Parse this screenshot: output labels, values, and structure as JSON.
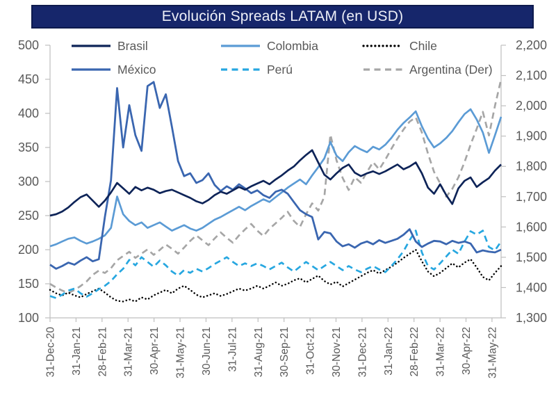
{
  "title": "Evolución Spreads LATAM (en USD)",
  "colors": {
    "background": "#FFFFFF",
    "title_bar_bg": "#16266B",
    "title_bar_border": "#0D1A4D",
    "title_text": "#EDEFF7",
    "axis_text": "#595959",
    "legend_text": "#595959",
    "axis_line": "#BFBFBF"
  },
  "chart_data": {
    "type": "line",
    "title": "Evolución Spreads LATAM (en USD)",
    "legend_position": "top",
    "grid": false,
    "x_tick_labels": [
      "31-Dec-20",
      "31-Jan-21",
      "28-Feb-21",
      "31-Mar-21",
      "30-Apr-21",
      "31-May-21",
      "30-Jun-21",
      "31-Jul-21",
      "31-Aug-21",
      "30-Sep-21",
      "31-Oct-21",
      "30-Nov-21",
      "31-Dec-21",
      "31-Jan-22",
      "28-Feb-22",
      "31-Mar-22",
      "30-Apr-22",
      "31-May-22"
    ],
    "x_span_months": 17.35,
    "y_left": {
      "min": 100,
      "max": 500,
      "step": 50,
      "ticks": [
        500,
        450,
        400,
        350,
        300,
        250,
        200,
        150,
        100
      ]
    },
    "y_right": {
      "min": 1300,
      "max": 2200,
      "step": 100,
      "ticks": [
        "2,200",
        "2,100",
        "2,000",
        "1,900",
        "1,800",
        "1,700",
        "1,600",
        "1,500",
        "1,400",
        "1,300"
      ]
    },
    "series": [
      {
        "name": "Brasil",
        "axis": "left",
        "color": "#0E2458",
        "style": "solid",
        "width": 2.7,
        "values": [
          250,
          252,
          256,
          262,
          270,
          277,
          281,
          272,
          263,
          272,
          284,
          298,
          290,
          282,
          292,
          287,
          291,
          288,
          283,
          286,
          288,
          284,
          280,
          276,
          271,
          268,
          273,
          280,
          285,
          282,
          287,
          292,
          288,
          293,
          297,
          301,
          296,
          303,
          309,
          316,
          322,
          331,
          339,
          346,
          328,
          310,
          303,
          312,
          320,
          325,
          313,
          308,
          312,
          315,
          311,
          315,
          320,
          325,
          318,
          322,
          328,
          312,
          291,
          282,
          296,
          280,
          267,
          290,
          301,
          306,
          292,
          299,
          305,
          316,
          325
        ]
      },
      {
        "name": "Colombia",
        "axis": "left",
        "color": "#5B9BD5",
        "style": "solid",
        "width": 2.7,
        "values": [
          205,
          208,
          212,
          216,
          218,
          213,
          209,
          212,
          216,
          221,
          232,
          278,
          252,
          242,
          236,
          240,
          232,
          236,
          240,
          234,
          228,
          232,
          236,
          231,
          228,
          232,
          238,
          244,
          248,
          253,
          258,
          263,
          258,
          264,
          269,
          274,
          270,
          277,
          284,
          291,
          297,
          303,
          296,
          309,
          321,
          334,
          358,
          338,
          330,
          343,
          352,
          347,
          343,
          351,
          347,
          354,
          364,
          376,
          386,
          394,
          403,
          381,
          363,
          350,
          356,
          364,
          374,
          387,
          399,
          406,
          391,
          372,
          342,
          368,
          395
        ]
      },
      {
        "name": "Chile",
        "axis": "left",
        "color": "#000000",
        "style": "dotted",
        "width": 2.5,
        "values": [
          141,
          136,
          133,
          137,
          133,
          130,
          135,
          139,
          143,
          137,
          130,
          125,
          124,
          127,
          124,
          130,
          127,
          133,
          137,
          141,
          136,
          143,
          147,
          141,
          134,
          130,
          133,
          136,
          132,
          135,
          139,
          143,
          140,
          143,
          147,
          143,
          147,
          152,
          147,
          150,
          155,
          158,
          152,
          157,
          162,
          154,
          149,
          153,
          146,
          151,
          156,
          161,
          166,
          170,
          165,
          170,
          175,
          181,
          188,
          194,
          200,
          183,
          168,
          161,
          166,
          173,
          180,
          174,
          181,
          186,
          174,
          160,
          155,
          166,
          176
        ]
      },
      {
        "name": "México",
        "axis": "left",
        "color": "#3A66B0",
        "style": "solid",
        "width": 2.8,
        "values": [
          178,
          172,
          176,
          181,
          178,
          184,
          189,
          183,
          186,
          248,
          302,
          437,
          350,
          412,
          368,
          345,
          440,
          446,
          408,
          428,
          380,
          330,
          308,
          312,
          298,
          302,
          312,
          295,
          286,
          293,
          288,
          296,
          290,
          283,
          287,
          280,
          276,
          285,
          288,
          282,
          270,
          258,
          252,
          248,
          215,
          226,
          224,
          212,
          205,
          208,
          203,
          209,
          212,
          208,
          214,
          210,
          213,
          216,
          222,
          230,
          212,
          204,
          209,
          213,
          212,
          208,
          213,
          210,
          212,
          209,
          196,
          199,
          197,
          196,
          200
        ]
      },
      {
        "name": "Perú",
        "axis": "left",
        "color": "#27A7E0",
        "style": "dashed",
        "width": 2.7,
        "values": [
          132,
          129,
          134,
          140,
          143,
          136,
          131,
          136,
          142,
          147,
          154,
          164,
          172,
          185,
          177,
          189,
          182,
          175,
          184,
          177,
          168,
          162,
          170,
          166,
          172,
          168,
          173,
          179,
          184,
          189,
          182,
          176,
          180,
          176,
          180,
          176,
          171,
          176,
          181,
          174,
          168,
          175,
          182,
          176,
          170,
          176,
          182,
          176,
          170,
          176,
          171,
          167,
          172,
          176,
          171,
          167,
          176,
          186,
          198,
          214,
          228,
          196,
          176,
          171,
          180,
          190,
          200,
          194,
          212,
          227,
          222,
          228,
          204,
          199,
          212
        ]
      },
      {
        "name": "Argentina (Der)",
        "axis": "right",
        "color": "#A6A6A6",
        "style": "dashed",
        "width": 2.7,
        "values": [
          1412,
          1400,
          1390,
          1382,
          1392,
          1405,
          1420,
          1442,
          1456,
          1448,
          1464,
          1490,
          1504,
          1518,
          1498,
          1512,
          1526,
          1508,
          1524,
          1542,
          1528,
          1512,
          1532,
          1554,
          1572,
          1556,
          1540,
          1562,
          1582,
          1564,
          1548,
          1572,
          1592,
          1610,
          1588,
          1570,
          1594,
          1612,
          1630,
          1650,
          1620,
          1600,
          1642,
          1678,
          1654,
          1700,
          1905,
          1820,
          1762,
          1722,
          1764,
          1746,
          1782,
          1814,
          1790,
          1822,
          1858,
          1892,
          1922,
          1948,
          1962,
          1912,
          1842,
          1782,
          1744,
          1700,
          1726,
          1764,
          1814,
          1872,
          1924,
          1980,
          1902,
          2000,
          2088
        ]
      }
    ]
  }
}
